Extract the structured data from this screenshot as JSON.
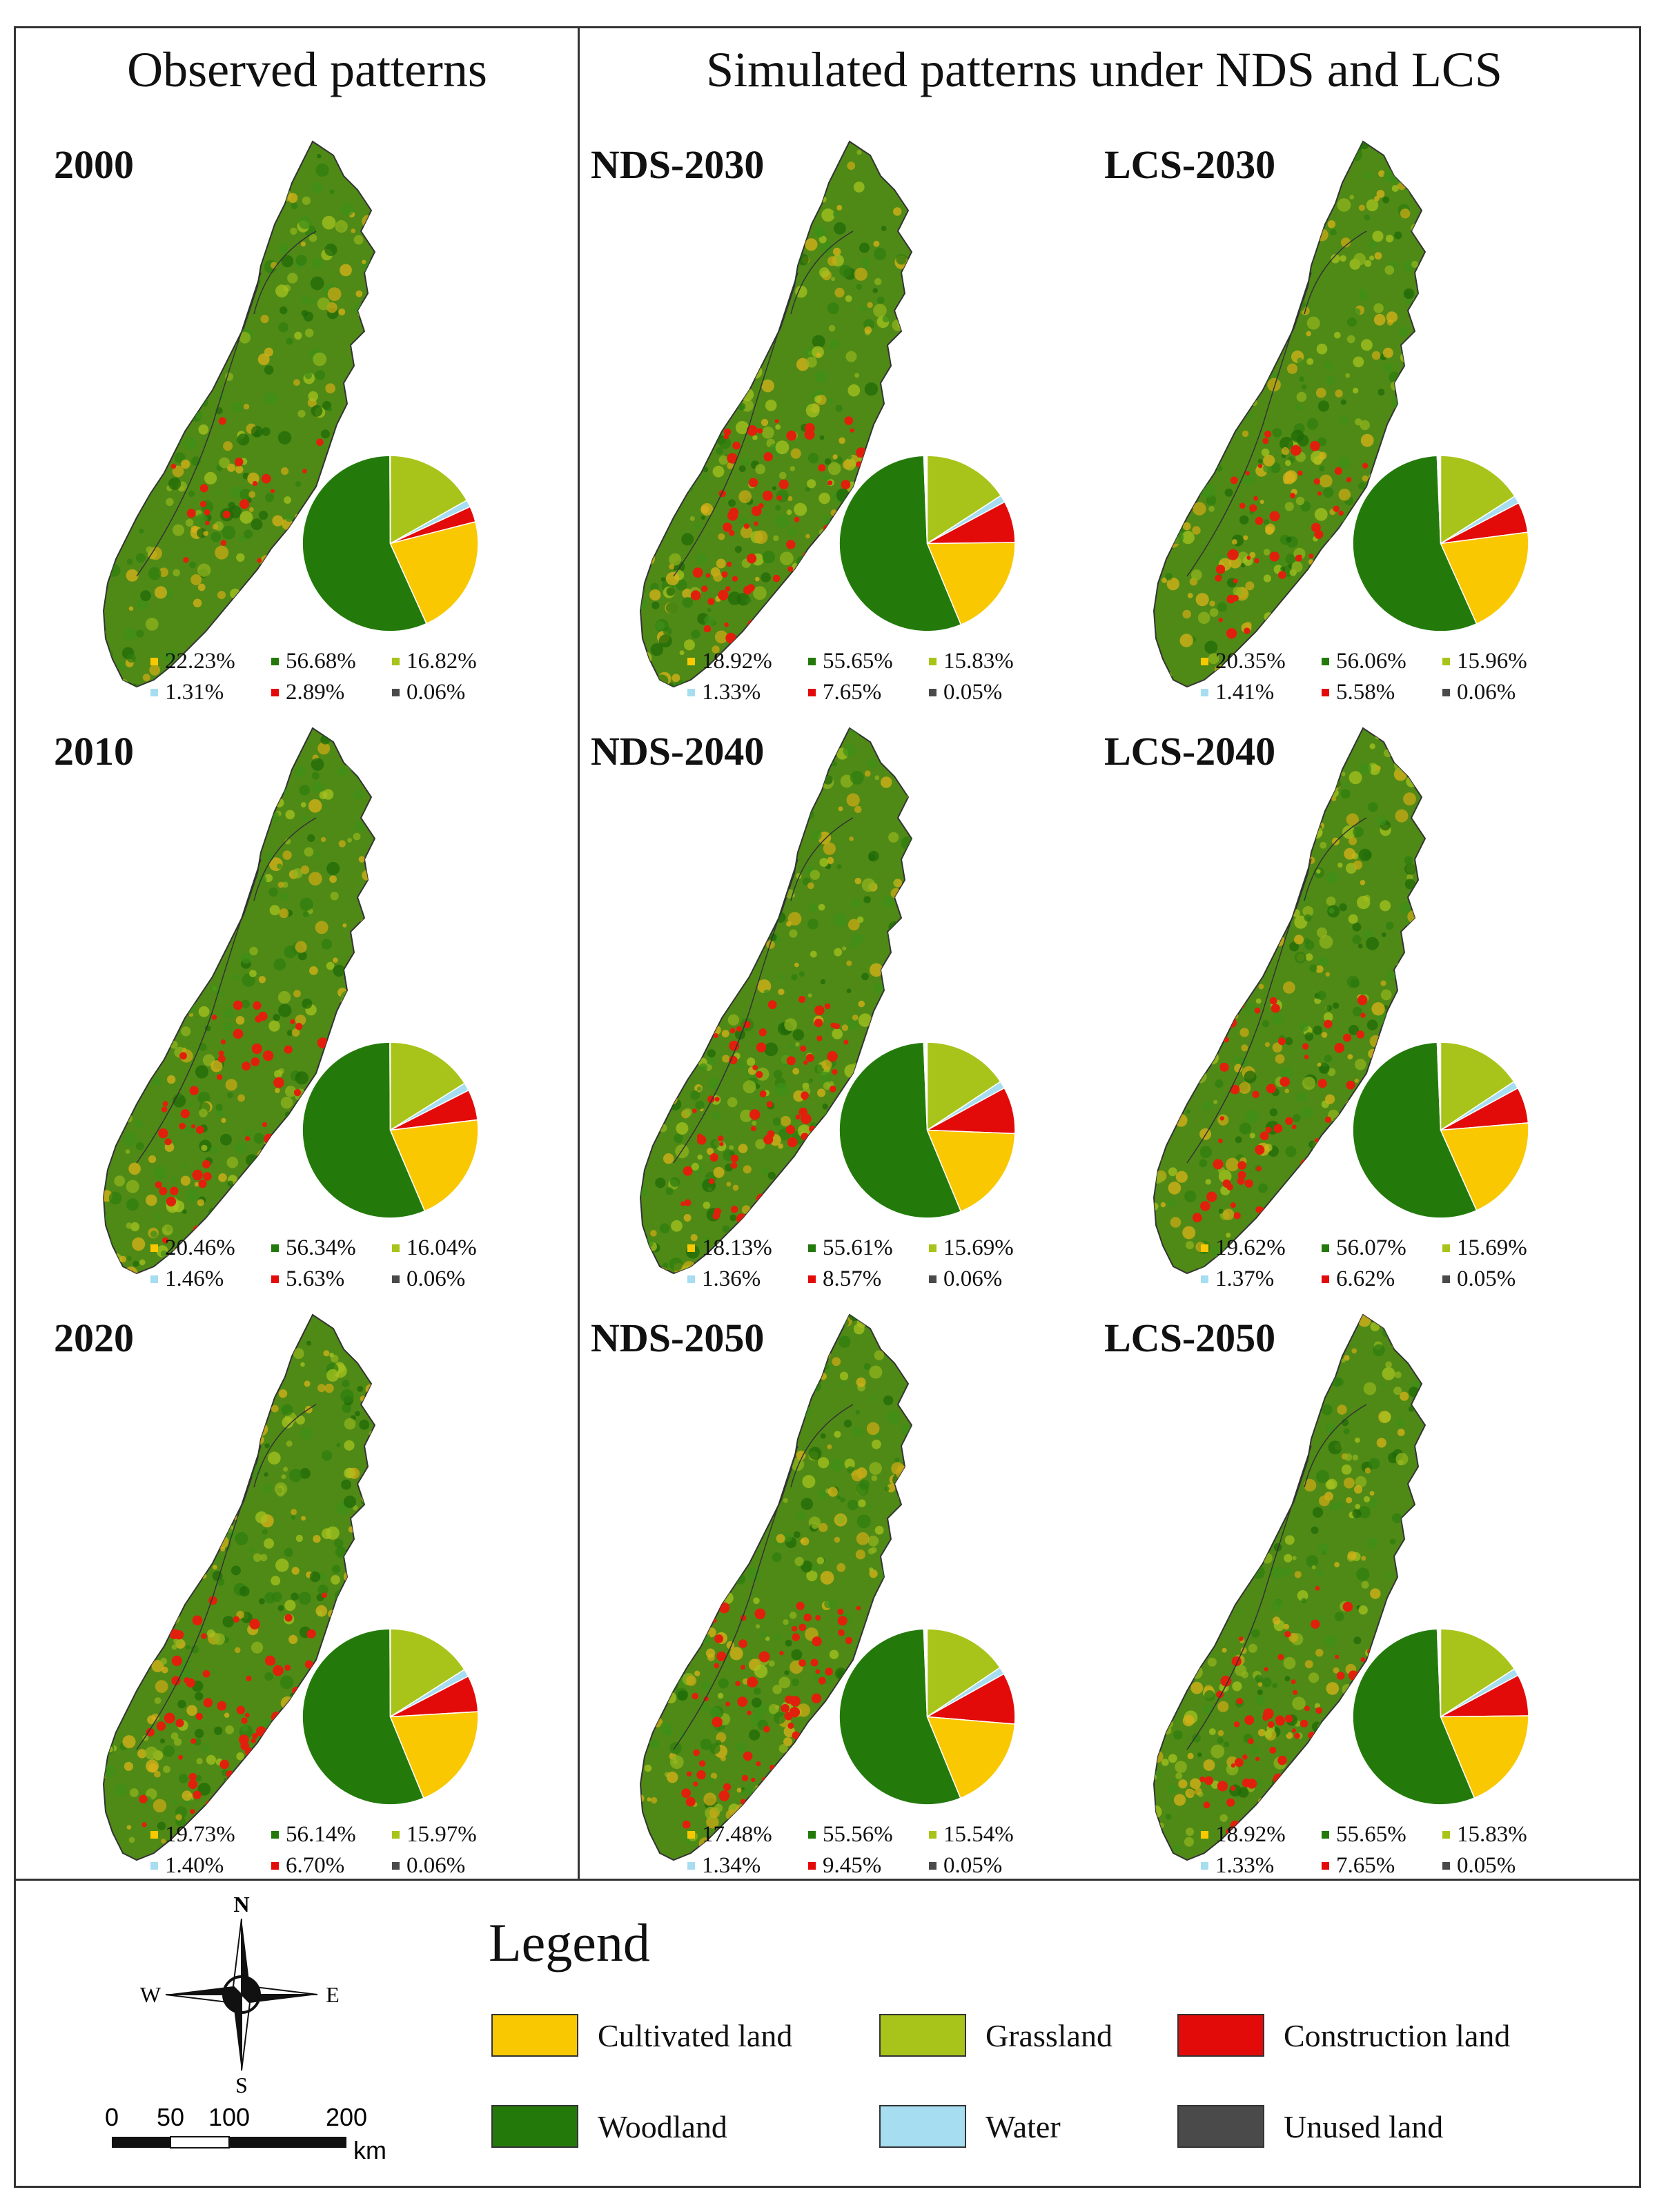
{
  "headers": {
    "observed": "Observed patterns",
    "simulated": "Simulated patterns under NDS and LCS"
  },
  "colors": {
    "cultivated": "#F9C800",
    "woodland": "#237A0B",
    "grassland": "#A8C41A",
    "water": "#A6DDF0",
    "construction": "#E30A0A",
    "unused": "#4A4A4A"
  },
  "panels": [
    {
      "label": "2000",
      "values": {
        "cultivated": "22.23%",
        "woodland": "56.68%",
        "grassland": "16.82%",
        "water": "1.31%",
        "construction": "2.89%",
        "unused": "0.06%"
      }
    },
    {
      "label": "NDS-2030",
      "values": {
        "cultivated": "18.92%",
        "woodland": "55.65%",
        "grassland": "15.83%",
        "water": "1.33%",
        "construction": "7.65%",
        "unused": "0.05%"
      }
    },
    {
      "label": "LCS-2030",
      "values": {
        "cultivated": "20.35%",
        "woodland": "56.06%",
        "grassland": "15.96%",
        "water": "1.41%",
        "construction": "5.58%",
        "unused": "0.06%"
      }
    },
    {
      "label": "2010",
      "values": {
        "cultivated": "20.46%",
        "woodland": "56.34%",
        "grassland": "16.04%",
        "water": "1.46%",
        "construction": "5.63%",
        "unused": "0.06%"
      }
    },
    {
      "label": "NDS-2040",
      "values": {
        "cultivated": "18.13%",
        "woodland": "55.61%",
        "grassland": "15.69%",
        "water": "1.36%",
        "construction": "8.57%",
        "unused": "0.06%"
      }
    },
    {
      "label": "LCS-2040",
      "values": {
        "cultivated": "19.62%",
        "woodland": "56.07%",
        "grassland": "15.69%",
        "water": "1.37%",
        "construction": "6.62%",
        "unused": "0.05%"
      }
    },
    {
      "label": "2020",
      "values": {
        "cultivated": "19.73%",
        "woodland": "56.14%",
        "grassland": "15.97%",
        "water": "1.40%",
        "construction": "6.70%",
        "unused": "0.06%"
      }
    },
    {
      "label": "NDS-2050",
      "values": {
        "cultivated": "17.48%",
        "woodland": "55.56%",
        "grassland": "15.54%",
        "water": "1.34%",
        "construction": "9.45%",
        "unused": "0.05%"
      }
    },
    {
      "label": "LCS-2050",
      "values": {
        "cultivated": "18.92%",
        "woodland": "55.65%",
        "grassland": "15.83%",
        "water": "1.33%",
        "construction": "7.65%",
        "unused": "0.05%"
      }
    }
  ],
  "legend": {
    "title": "Legend",
    "items": {
      "cultivated": "Cultivated land",
      "grassland": "Grassland",
      "construction": "Construction land",
      "woodland": "Woodland",
      "water": "Water",
      "unused": "Unused land"
    }
  },
  "compass": {
    "n": "N",
    "s": "S",
    "e": "E",
    "w": "W"
  },
  "scale": {
    "t0": "0",
    "t50": "50",
    "t100": "100",
    "t200": "200",
    "unit": "km"
  }
}
